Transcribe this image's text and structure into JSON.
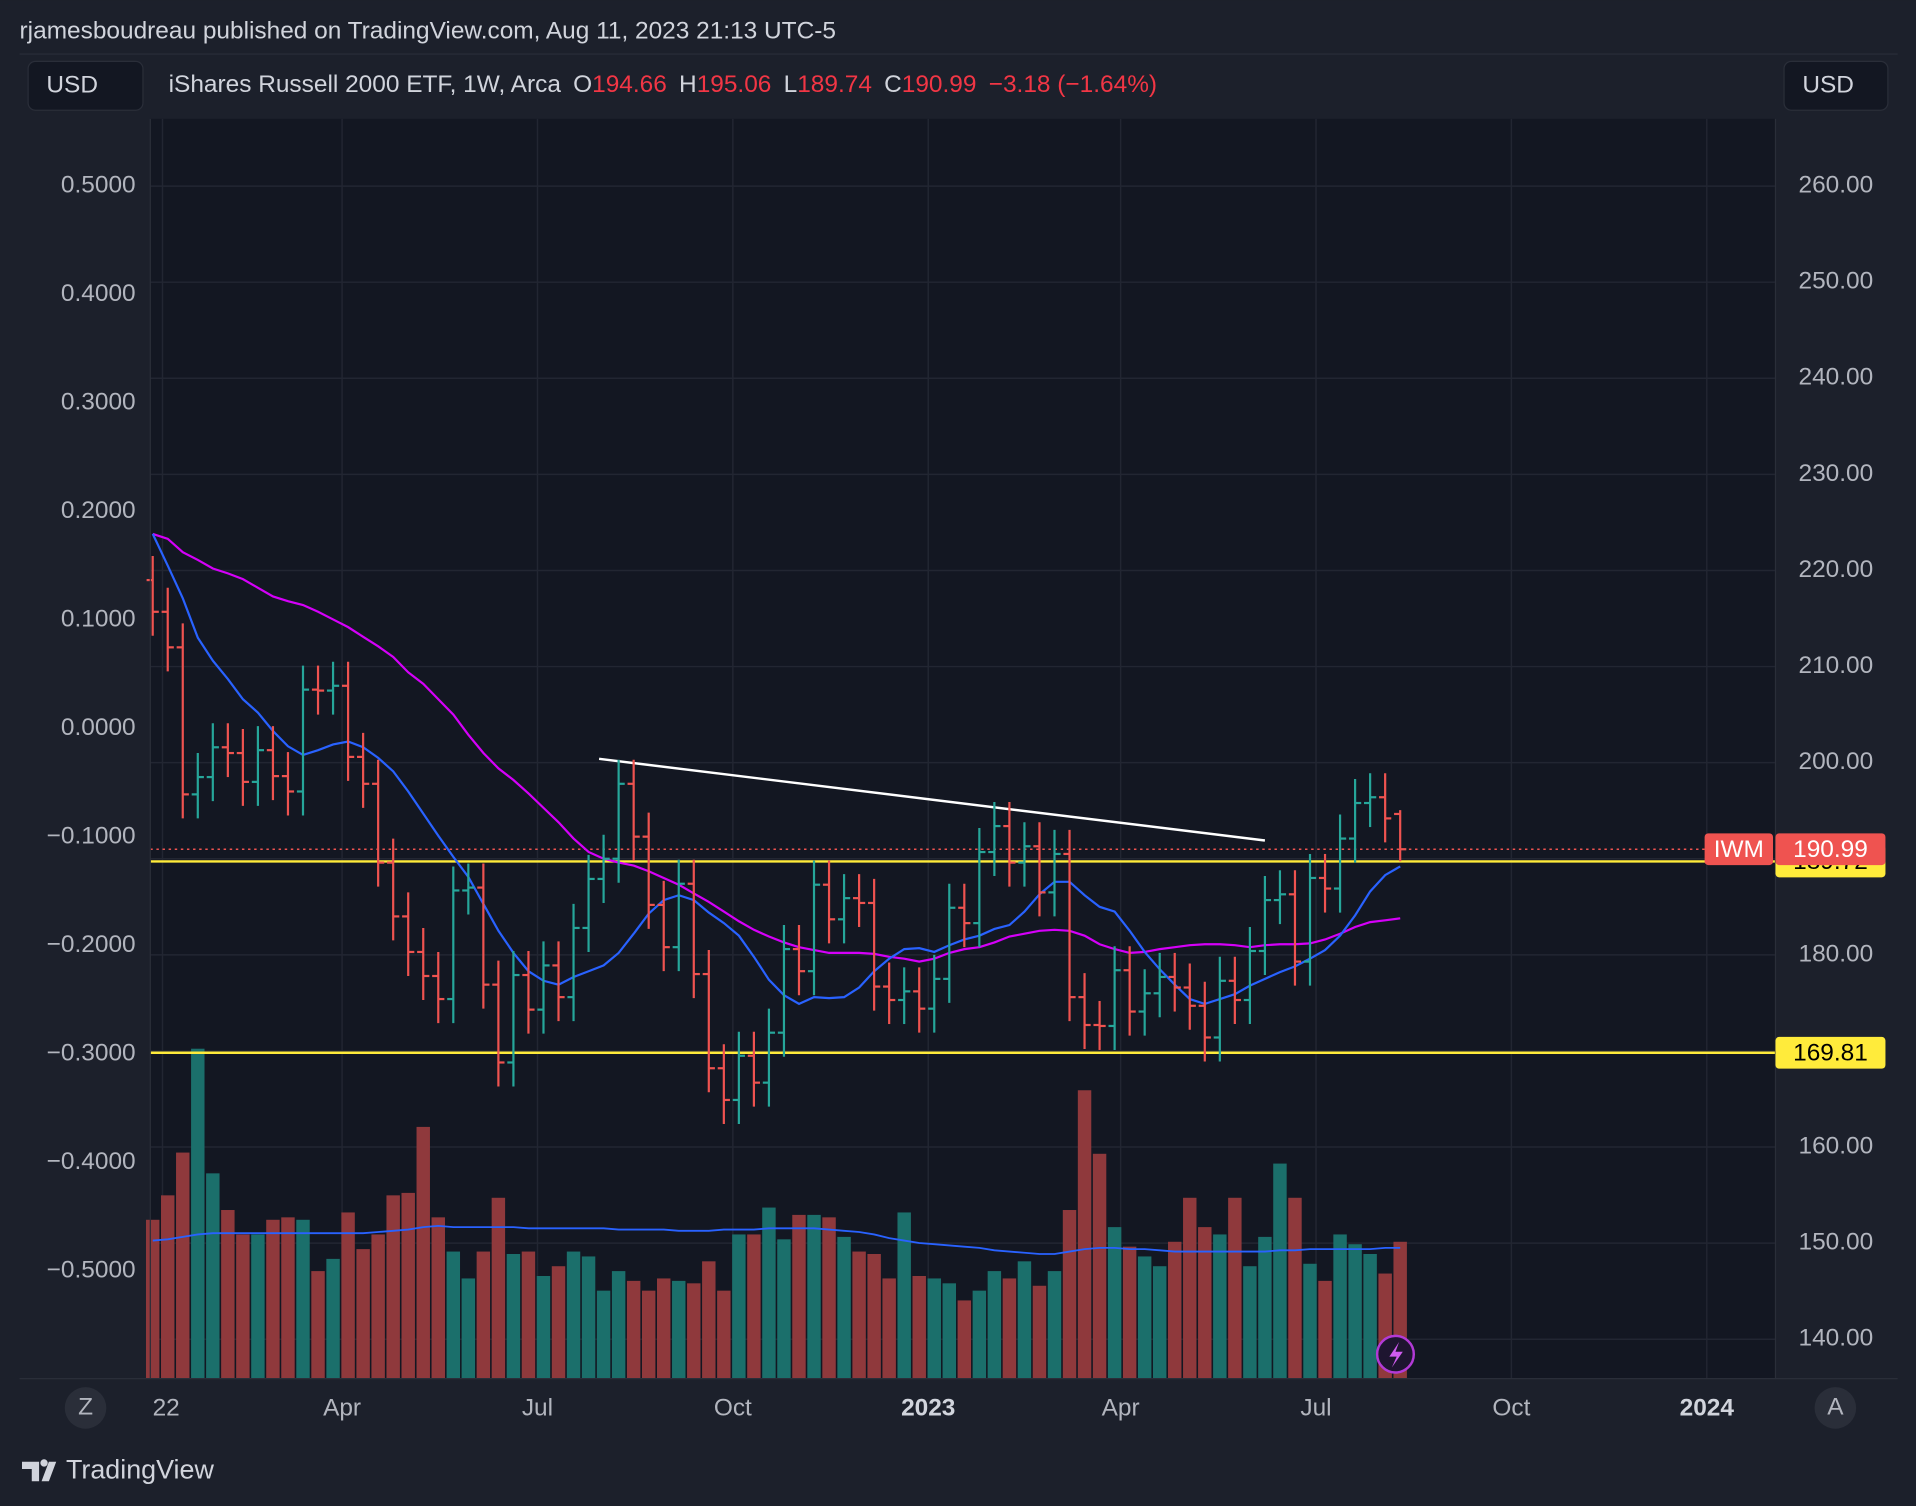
{
  "header": {
    "byline": "rjamesboudreau published on TradingView.com, Aug 11, 2023 21:13 UTC-5",
    "currency_left": "USD",
    "currency_right": "USD",
    "symbol": "iShares Russell 2000 ETF, 1W, Arca",
    "o": "O",
    "h": "H",
    "l": "L",
    "c": "C",
    "change": "−3.18 (−1.64%)",
    "scale_left": "Z",
    "scale_right": "A",
    "brand": "TradingView"
  },
  "chart_data": {
    "type": "ohlc",
    "symbol_tag": "IWM",
    "open": [
      219.0,
      215.7,
      212.0,
      196.7,
      198.5,
      201.6,
      201.0,
      198.0,
      201.3,
      198.6,
      197.0,
      207.6,
      207.5,
      208.0,
      200.6,
      197.8,
      189.6,
      184.0,
      180.3,
      177.8,
      175.4,
      186.7,
      187.0,
      176.9,
      168.8,
      177.9,
      174.3,
      178.9,
      175.6,
      182.8,
      187.9,
      190.0,
      197.8,
      192.3,
      185.2,
      180.8,
      187.4,
      178.0,
      168.2,
      164.9,
      169.5,
      166.7,
      171.9,
      180.6,
      178.3,
      187.3,
      183.7,
      185.9,
      185.4,
      176.7,
      175.3,
      176.2,
      174.4,
      177.5,
      184.9,
      183.3,
      190.7,
      193.4,
      189.6,
      191.3,
      186.5,
      190.5,
      175.6,
      172.7,
      172.6,
      178.4,
      174.1,
      176.0,
      177.7,
      176.6,
      174.7,
      171.4,
      177.3,
      175.3,
      180.4,
      185.7,
      186.3,
      179.3,
      188.0,
      186.9,
      192.1,
      195.8,
      196.4,
      194.66
    ],
    "high": [
      221.5,
      218.2,
      214.5,
      201.0,
      204.1,
      204.1,
      203.5,
      203.8,
      203.8,
      201.1,
      210.1,
      210.1,
      210.5,
      210.5,
      203.1,
      200.3,
      192.1,
      186.5,
      182.8,
      180.3,
      189.2,
      189.5,
      189.5,
      179.4,
      180.4,
      180.4,
      181.4,
      181.4,
      185.3,
      190.4,
      192.5,
      200.3,
      200.3,
      194.8,
      187.7,
      189.9,
      189.9,
      180.5,
      170.7,
      172.0,
      172.0,
      174.4,
      183.1,
      183.1,
      189.8,
      189.8,
      188.4,
      188.4,
      187.9,
      179.2,
      178.7,
      178.7,
      180.0,
      187.4,
      187.4,
      193.2,
      195.9,
      195.9,
      193.8,
      193.8,
      193.0,
      193.0,
      178.1,
      175.2,
      180.9,
      180.9,
      178.5,
      180.2,
      180.2,
      179.1,
      177.2,
      179.8,
      179.8,
      182.9,
      188.2,
      188.8,
      188.8,
      190.5,
      190.5,
      194.6,
      198.3,
      198.9,
      198.9,
      195.06
    ],
    "low": [
      213.2,
      209.5,
      194.2,
      194.2,
      196.0,
      198.5,
      195.5,
      195.5,
      196.1,
      194.5,
      194.5,
      205.0,
      205.0,
      198.1,
      195.3,
      187.1,
      181.5,
      177.8,
      175.3,
      172.9,
      172.9,
      184.2,
      174.4,
      166.3,
      166.3,
      171.8,
      171.8,
      173.1,
      173.1,
      180.3,
      185.4,
      187.5,
      189.8,
      182.7,
      178.3,
      178.3,
      175.5,
      165.7,
      162.4,
      162.4,
      164.2,
      164.2,
      169.4,
      175.8,
      175.8,
      181.2,
      181.2,
      182.9,
      174.2,
      172.8,
      172.8,
      171.9,
      171.9,
      175.0,
      180.8,
      180.8,
      188.2,
      187.1,
      187.1,
      184.0,
      184.0,
      173.1,
      170.2,
      170.1,
      170.1,
      171.6,
      171.6,
      173.5,
      174.1,
      172.2,
      168.9,
      168.9,
      172.8,
      172.8,
      177.9,
      183.2,
      176.8,
      176.8,
      184.4,
      184.4,
      189.6,
      193.3,
      191.7,
      189.74
    ],
    "close": [
      215.7,
      212.0,
      196.7,
      198.5,
      201.6,
      201.0,
      198.0,
      201.3,
      198.6,
      197.0,
      207.6,
      207.5,
      208.0,
      200.6,
      197.8,
      189.6,
      184.0,
      180.3,
      177.8,
      175.4,
      186.7,
      187.0,
      176.9,
      168.8,
      177.9,
      174.3,
      178.9,
      175.6,
      182.8,
      187.9,
      190.0,
      197.8,
      192.3,
      185.2,
      180.8,
      187.4,
      178.0,
      168.2,
      164.9,
      169.5,
      166.7,
      171.9,
      180.6,
      178.3,
      187.3,
      183.7,
      185.9,
      185.4,
      176.7,
      175.3,
      176.2,
      174.4,
      177.5,
      184.9,
      183.3,
      190.7,
      193.4,
      189.6,
      191.3,
      186.5,
      190.5,
      175.6,
      172.7,
      172.6,
      178.4,
      174.1,
      176.0,
      177.7,
      176.6,
      174.7,
      171.4,
      177.3,
      175.3,
      180.4,
      185.7,
      186.3,
      179.3,
      188.0,
      186.9,
      192.1,
      195.8,
      196.4,
      194.2,
      190.99
    ],
    "up_color": "#26a69a",
    "down_color": "#ef5350",
    "ma_fast": {
      "color": "#2962ff",
      "values": [
        223.8,
        220.5,
        217.1,
        213.0,
        210.6,
        208.7,
        206.6,
        205.2,
        203.3,
        201.7,
        200.8,
        201.3,
        201.9,
        202.2,
        201.6,
        200.5,
        199.1,
        197.0,
        194.7,
        192.4,
        190.2,
        188.1,
        185.3,
        182.5,
        180.2,
        178.3,
        177.3,
        176.9,
        177.7,
        178.3,
        178.9,
        180.2,
        182.2,
        184.3,
        185.7,
        186.2,
        185.7,
        184.4,
        183.3,
        182.0,
        179.8,
        177.4,
        175.8,
        174.9,
        175.6,
        175.5,
        175.6,
        176.6,
        178.3,
        179.6,
        180.6,
        180.7,
        180.3,
        181.0,
        181.6,
        182.0,
        182.7,
        183.1,
        184.5,
        186.3,
        187.6,
        187.6,
        186.2,
        185.0,
        184.5,
        182.5,
        180.3,
        178.5,
        176.9,
        175.4,
        174.9,
        175.4,
        175.9,
        176.8,
        177.5,
        178.2,
        178.8,
        179.6,
        180.5,
        182.0,
        184.1,
        186.6,
        188.3,
        189.2
      ]
    },
    "ma_slow": {
      "color": "#d500f9",
      "values": [
        223.8,
        223.3,
        221.9,
        221.1,
        220.2,
        219.7,
        219.1,
        218.2,
        217.3,
        216.8,
        216.4,
        215.7,
        214.9,
        214.1,
        213.1,
        212.1,
        211.0,
        209.4,
        208.2,
        206.6,
        205.0,
        202.9,
        201.0,
        199.4,
        198.2,
        196.8,
        195.3,
        193.8,
        192.1,
        190.7,
        190.0,
        189.6,
        189.3,
        188.7,
        188.0,
        187.3,
        186.4,
        185.5,
        184.5,
        183.5,
        182.6,
        181.9,
        181.3,
        180.8,
        180.5,
        180.2,
        180.2,
        180.2,
        180.1,
        179.8,
        179.6,
        179.3,
        179.6,
        180.2,
        180.6,
        180.8,
        181.3,
        181.9,
        182.2,
        182.5,
        182.6,
        182.5,
        182.0,
        181.1,
        180.6,
        180.2,
        180.3,
        180.6,
        180.8,
        181.0,
        181.1,
        181.1,
        181.0,
        180.8,
        181.0,
        181.1,
        181.1,
        181.2,
        181.6,
        182.2,
        182.9,
        183.4,
        183.6,
        183.8
      ]
    },
    "volume": [
      130,
      150,
      185,
      270,
      168,
      138,
      118,
      118,
      130,
      132,
      130,
      88,
      98,
      136,
      106,
      118,
      150,
      152,
      206,
      132,
      104,
      82,
      104,
      148,
      102,
      104,
      84,
      92,
      104,
      100,
      72,
      88,
      80,
      72,
      82,
      80,
      78,
      96,
      72,
      118,
      118,
      140,
      114,
      134,
      134,
      132,
      116,
      104,
      102,
      82,
      136,
      84,
      82,
      78,
      64,
      72,
      88,
      82,
      96,
      76,
      88,
      138,
      236,
      184,
      124,
      108,
      100,
      92,
      112,
      148,
      124,
      118,
      148,
      92,
      116,
      176,
      148,
      94,
      80,
      118,
      110,
      102,
      86,
      112
    ],
    "volume_ma": {
      "color": "#2962ff",
      "values": [
        113,
        114,
        116,
        118,
        119,
        119,
        119,
        119,
        119,
        119,
        119,
        119,
        119,
        119,
        119,
        120,
        121,
        122,
        124,
        125,
        124,
        124,
        124,
        124,
        124,
        123,
        123,
        123,
        123,
        123,
        123,
        122,
        122,
        122,
        122,
        121,
        121,
        121,
        122,
        122,
        122,
        123,
        123,
        123,
        123,
        122,
        121,
        120,
        118,
        115,
        113,
        111,
        110,
        109,
        108,
        107,
        105,
        104,
        103,
        102,
        102,
        104,
        106,
        107,
        107,
        106,
        106,
        105,
        104,
        104,
        104,
        104,
        104,
        104,
        104,
        105,
        105,
        106,
        106,
        106,
        106,
        106,
        107,
        107
      ]
    },
    "vlim": [
      0,
      300
    ],
    "volume_up_color": "#1b6f6b",
    "volume_down_color": "#8f393c",
    "hlines": [
      {
        "value": 189.72,
        "color": "#ffeb3b"
      },
      {
        "value": 169.81,
        "color": "#ffeb3b"
      }
    ],
    "trendline": {
      "x": [
        29.7,
        74.0
      ],
      "y": [
        200.4,
        191.9
      ],
      "color": "#ffffff"
    },
    "ylim": [
      135.9,
      267
    ],
    "yticks": [
      {
        "value": 140,
        "label": "140.00"
      },
      {
        "value": 150,
        "label": "150.00"
      },
      {
        "value": 160,
        "label": "160.00"
      },
      {
        "value": 170,
        "label": "170.00"
      },
      {
        "value": 180,
        "label": "180.00"
      },
      {
        "value": 190,
        "label": "190.00"
      },
      {
        "value": 200,
        "label": "200.00"
      },
      {
        "value": 210,
        "label": "210.00"
      },
      {
        "value": 220,
        "label": "220.00"
      },
      {
        "value": 230,
        "label": "230.00"
      },
      {
        "value": 240,
        "label": "240.00"
      },
      {
        "value": 250,
        "label": "250.00"
      },
      {
        "value": 260,
        "label": "260.00"
      }
    ],
    "y2lim": [
      -0.599,
      0.562
    ],
    "y2ticks": [
      {
        "value": 0.5,
        "label": "0.5000"
      },
      {
        "value": 0.4,
        "label": "0.4000"
      },
      {
        "value": 0.3,
        "label": "0.3000"
      },
      {
        "value": 0.2,
        "label": "0.2000"
      },
      {
        "value": 0.1,
        "label": "0.1000"
      },
      {
        "value": 0,
        "label": "0.0000"
      },
      {
        "value": -0.1,
        "label": "−0.1000"
      },
      {
        "value": -0.2,
        "label": "−0.2000"
      },
      {
        "value": -0.3,
        "label": "−0.3000"
      },
      {
        "value": -0.4,
        "label": "−0.4000"
      },
      {
        "value": -0.5,
        "label": "−0.5000"
      }
    ],
    "xlim": [
      -0.16,
      107.97
    ],
    "xticks": [
      {
        "value": 0.65,
        "label": "22"
      },
      {
        "value": 12.6,
        "label": "Apr"
      },
      {
        "value": 25.6,
        "label": "Jul"
      },
      {
        "value": 38.6,
        "label": "Oct"
      },
      {
        "value": 51.6,
        "label": "2023"
      },
      {
        "value": 64.4,
        "label": "Apr"
      },
      {
        "value": 77.4,
        "label": "Jul"
      },
      {
        "value": 90.4,
        "label": "Oct"
      },
      {
        "value": 103.4,
        "label": "2024"
      }
    ],
    "grid": true
  }
}
